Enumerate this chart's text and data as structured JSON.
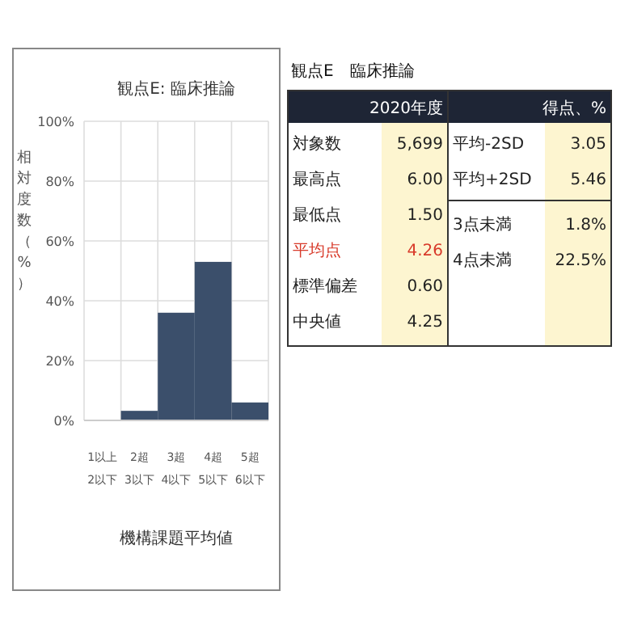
{
  "chart_data": [
    {
      "type": "bar",
      "title": "観点E: 臨床推論",
      "xlabel": "機構課題平均値",
      "ylabel": "相対度数（%）",
      "categories": [
        "1以上 2以下",
        "2超 3以下",
        "3超 4以下",
        "4超 5以下",
        "5超 6以下"
      ],
      "values": [
        0,
        3.2,
        36,
        53,
        6
      ],
      "color": "#3b4f6b",
      "ylim": [
        0,
        100
      ],
      "yticks": [
        {
          "value": 0,
          "label": "0%"
        },
        {
          "value": 20,
          "label": "20%"
        },
        {
          "value": 40,
          "label": "40%"
        },
        {
          "value": 60,
          "label": "60%"
        },
        {
          "value": 80,
          "label": "80%"
        },
        {
          "value": 100,
          "label": "100%"
        }
      ],
      "grid": true
    },
    {
      "type": "other",
      "title": "観点E　臨床推論",
      "annotations": [
        "2020年度",
        "得点、%",
        "対象数",
        "5,699",
        "最高点",
        "6.00",
        "最低点",
        "1.50",
        "平均点",
        "4.26",
        "標準偏差",
        "0.60",
        "中央値",
        "4.25",
        "平均-2SD",
        "3.05",
        "平均+2SD",
        "5.46",
        "3点未満",
        "1.8%",
        "4点未満",
        "22.5%"
      ]
    }
  ]
}
